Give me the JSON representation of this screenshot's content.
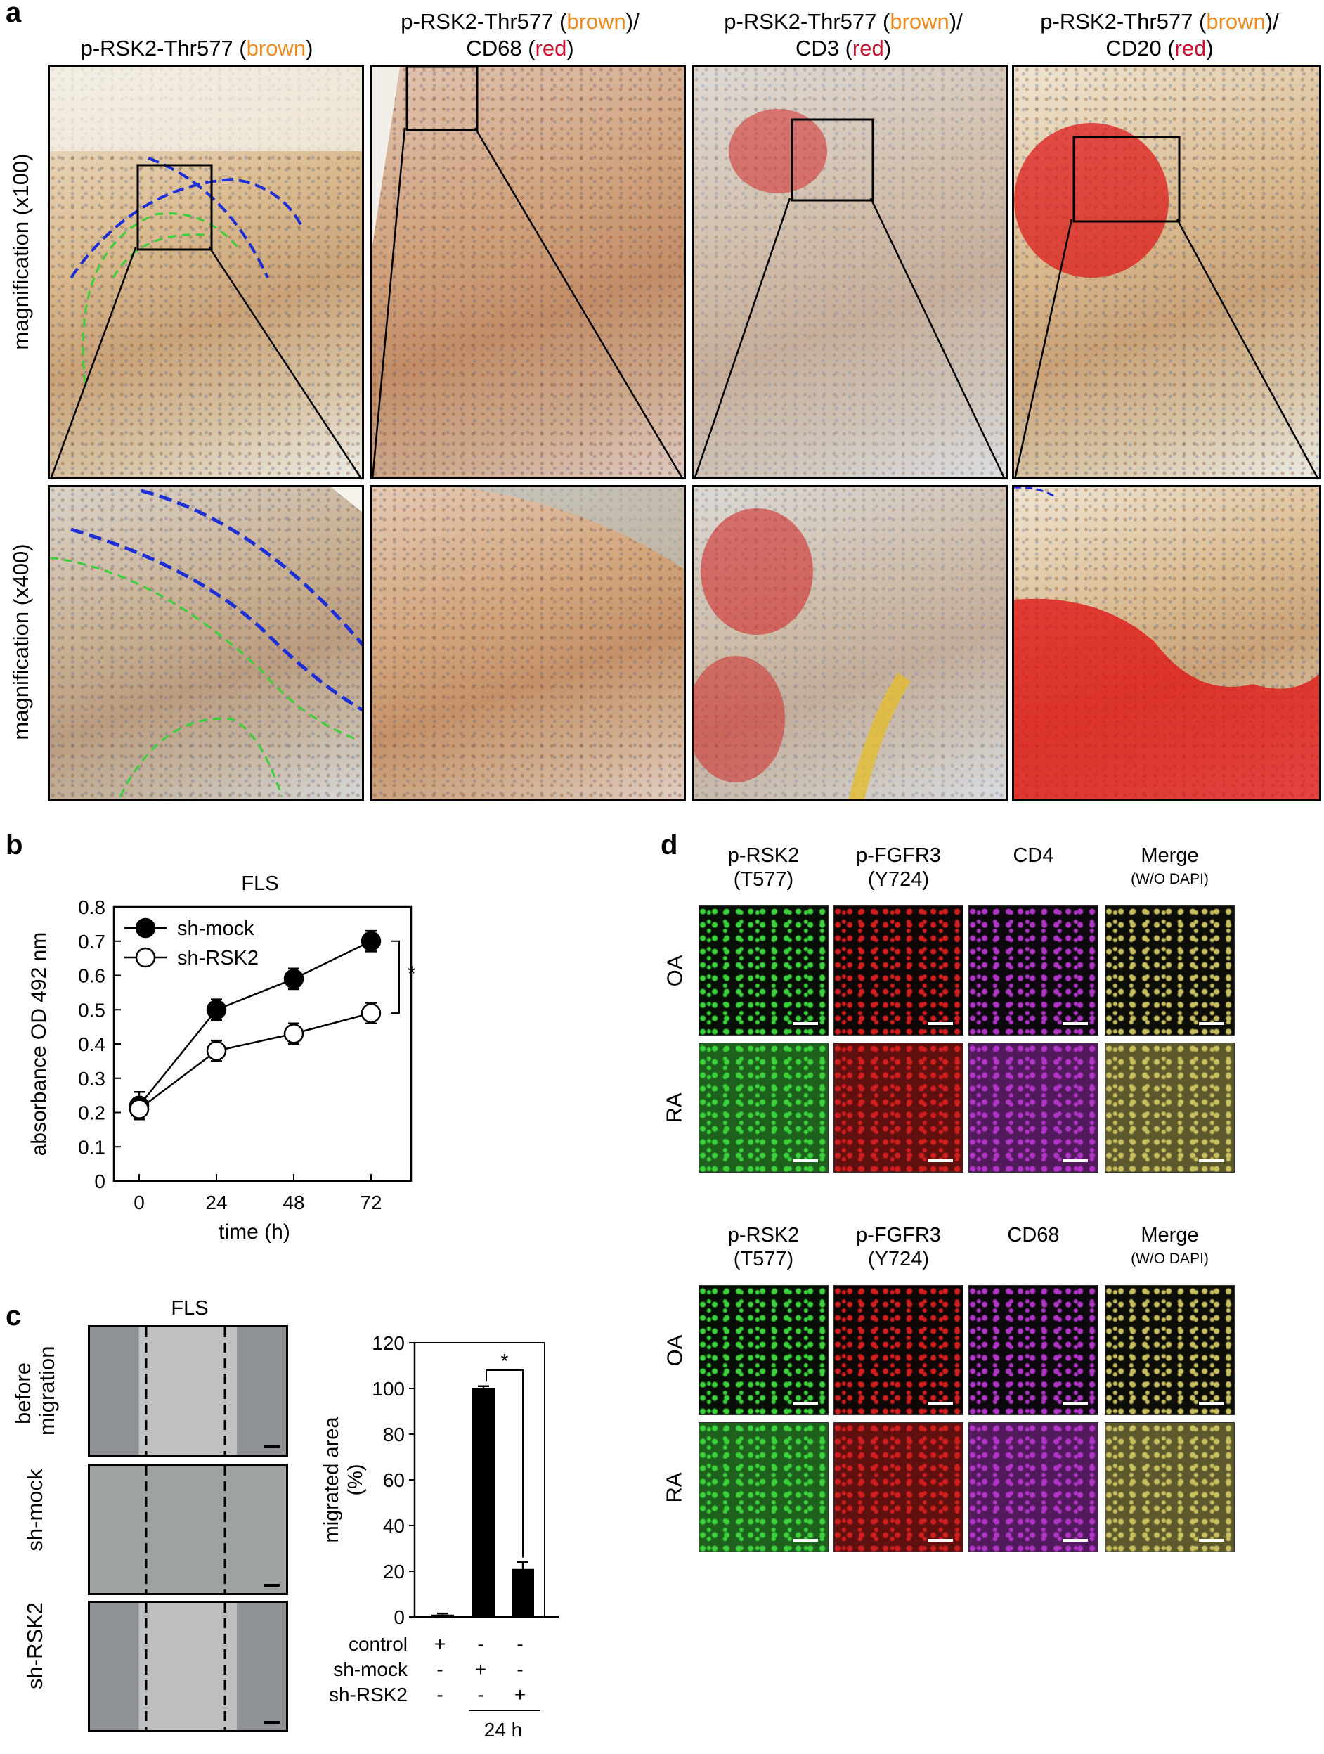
{
  "panel_labels": {
    "a": "a",
    "b": "b",
    "c": "c",
    "d": "d"
  },
  "panel_a": {
    "headers": [
      {
        "l1_pre": "p-RSK2-Thr577 (",
        "l1_col": "brown",
        "l1_post": ")",
        "l2_pre": "",
        "l2_col": "",
        "l2_post": ""
      },
      {
        "l1_pre": "p-RSK2-Thr577 (",
        "l1_col": "brown",
        "l1_post": ")/",
        "l2_pre": "CD68 (",
        "l2_col": "red",
        "l2_post": ")"
      },
      {
        "l1_pre": "p-RSK2-Thr577 (",
        "l1_col": "brown",
        "l1_post": ")/",
        "l2_pre": "CD3 (",
        "l2_col": "red",
        "l2_post": ")"
      },
      {
        "l1_pre": "p-RSK2-Thr577 (",
        "l1_col": "brown",
        "l1_post": ")/",
        "l2_pre": "CD20 (",
        "l2_col": "red",
        "l2_post": ")"
      }
    ],
    "row_labels": [
      "magnification (x100)",
      "magnification (x400)"
    ],
    "colors": {
      "brown": "#ec8a1c",
      "red": "#c8102e",
      "outline_blue": "#1f2fd6",
      "outline_green": "#3ccf3c"
    }
  },
  "panel_b": {
    "chart_data": {
      "type": "line",
      "title": "FLS",
      "xlabel": "time (h)",
      "ylabel": "absorbance OD 492 nm",
      "x": [
        0,
        24,
        48,
        72
      ],
      "ylim": [
        0,
        0.8
      ],
      "yticks": [
        "0",
        "0.1",
        "0.2",
        "0.3",
        "0.4",
        "0.5",
        "0.6",
        "0.7",
        "0.8"
      ],
      "xticks": [
        "0",
        "24",
        "48",
        "72"
      ],
      "series": [
        {
          "name": "sh-mock",
          "values": [
            0.22,
            0.5,
            0.59,
            0.7
          ],
          "errors": [
            0.04,
            0.03,
            0.03,
            0.03
          ],
          "marker": "filled"
        },
        {
          "name": "sh-RSK2",
          "values": [
            0.21,
            0.38,
            0.43,
            0.49
          ],
          "errors": [
            0.03,
            0.03,
            0.03,
            0.03
          ],
          "marker": "open"
        }
      ],
      "annotation": "*",
      "legend": "top-left"
    }
  },
  "panel_c": {
    "image_title": "FLS",
    "row_labels": [
      "before\nmigration",
      "sh-mock",
      "sh-RSK2"
    ],
    "chart_data": {
      "type": "bar",
      "ylabel": "migrated area\n(%)",
      "categories": [
        "control",
        "sh-mock",
        "sh-RSK2"
      ],
      "values": [
        1,
        100,
        21
      ],
      "errors": [
        0.5,
        1,
        3
      ],
      "ylim": [
        0,
        120
      ],
      "yticks": [
        "0",
        "20",
        "40",
        "60",
        "80",
        "100",
        "120"
      ],
      "annotation": "*",
      "condition_rows": [
        {
          "label": "control",
          "marks": [
            "+",
            "-",
            "-"
          ]
        },
        {
          "label": "sh-mock",
          "marks": [
            "-",
            "+",
            "-"
          ]
        },
        {
          "label": "sh-RSK2",
          "marks": [
            "-",
            "-",
            "+"
          ]
        }
      ],
      "time_label": "24 h"
    }
  },
  "panel_d": {
    "blocks": [
      {
        "headers": [
          [
            "p-RSK2",
            "(T577)"
          ],
          [
            "p-FGFR3",
            "(Y724)"
          ],
          [
            "CD4",
            ""
          ],
          [
            "Merge",
            "(W/O DAPI)"
          ]
        ],
        "rows": [
          "OA",
          "RA"
        ]
      },
      {
        "headers": [
          [
            "p-RSK2",
            "(T577)"
          ],
          [
            "p-FGFR3",
            "(Y724)"
          ],
          [
            "CD68",
            ""
          ],
          [
            "Merge",
            "(W/O DAPI)"
          ]
        ],
        "rows": [
          "OA",
          "RA"
        ]
      }
    ],
    "colors": {
      "green": "#3bd23b",
      "red": "#d21e1e",
      "magenta": "#b236c8",
      "merge": "#c9c060"
    }
  }
}
